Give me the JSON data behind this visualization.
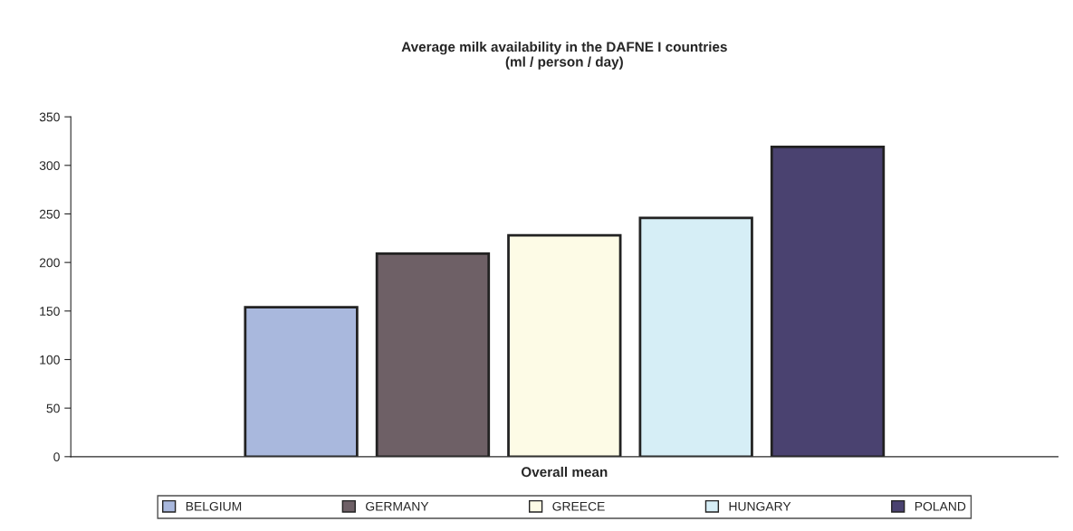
{
  "chart_data": {
    "type": "bar",
    "title": "Average milk availability in the DAFNE I countries\n(ml / person / day)",
    "categories": [
      "Overall mean"
    ],
    "series": [
      {
        "name": "BELGIUM",
        "color": "#a9b8dd",
        "values": [
          154
        ]
      },
      {
        "name": "GERMANY",
        "color": "#6e6066",
        "values": [
          209
        ]
      },
      {
        "name": "GREECE",
        "color": "#fdfbe6",
        "values": [
          228
        ]
      },
      {
        "name": "HUNGARY",
        "color": "#d6eef6",
        "values": [
          246
        ]
      },
      {
        "name": "POLAND",
        "color": "#4a4270",
        "values": [
          319
        ]
      }
    ],
    "ylim": [
      0,
      350
    ],
    "yticks": [
      0,
      50,
      100,
      150,
      200,
      250,
      300,
      350
    ],
    "grid": false,
    "legend": "bottom"
  }
}
